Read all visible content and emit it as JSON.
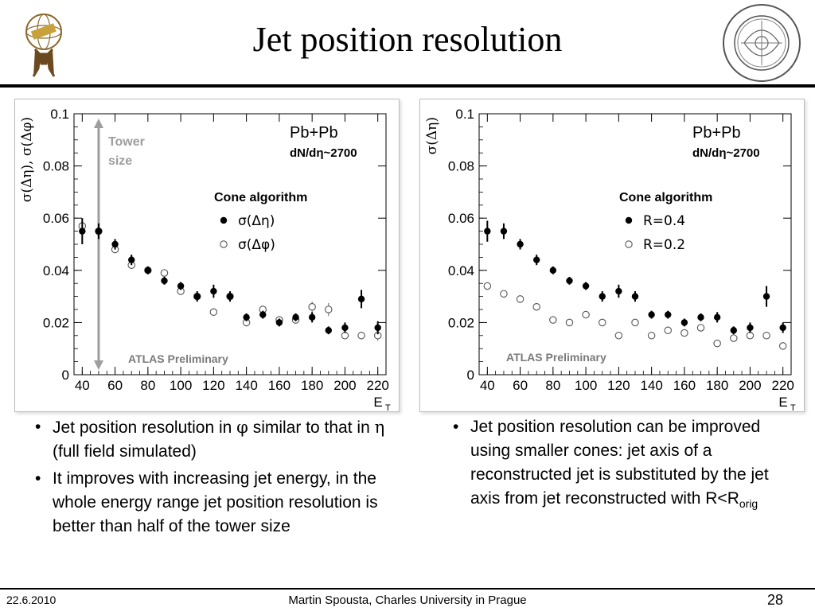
{
  "slide": {
    "title": "Jet position resolution",
    "footer": {
      "date": "22.6.2010",
      "author": "Martin Spousta,  Charles University in Prague",
      "page": "28"
    }
  },
  "bullets_left": [
    {
      "parts": [
        "Jet position resolution in ",
        "φ",
        " similar to that in ",
        "η",
        " (full field simulated)"
      ]
    },
    {
      "parts": [
        "It improves with increasing jet energy, in the whole energy range jet position resolution is better than half of the tower size"
      ]
    }
  ],
  "bullets_right": [
    {
      "text": "Jet position resolution can be improved using smaller cones: jet axis of a reconstructed jet is substituted by the jet axis from jet reconstructed with R<R",
      "sub": "orig"
    }
  ],
  "chart_data": [
    {
      "type": "scatter",
      "ylabel": "σ(Δη), σ(Δφ)",
      "xlabel": "E",
      "xlabel_sub": "T",
      "xlim": [
        35,
        225
      ],
      "ylim": [
        0,
        0.1
      ],
      "x_ticks": [
        40,
        60,
        80,
        100,
        120,
        140,
        160,
        180,
        200,
        220
      ],
      "y_ticks": [
        0,
        0.02,
        0.04,
        0.06,
        0.08,
        0.1
      ],
      "y_tick_labels": [
        "0",
        "0.02",
        "0.04",
        "0.06",
        "0.08",
        "0.1"
      ],
      "texts": {
        "system": "Pb+Pb",
        "multiplicity": "dN/dη~2700",
        "algorithm": "Cone algorithm",
        "preliminary": "ATLAS Preliminary",
        "tower_size": [
          "Tower",
          "size"
        ]
      },
      "tower_arrow": {
        "x": 50,
        "y_from": 0.0,
        "y_to": 0.1,
        "color": "#9e9e9e"
      },
      "series": [
        {
          "name": "σ(Δη)",
          "marker": "filled",
          "x": [
            40,
            50,
            60,
            70,
            80,
            90,
            100,
            110,
            120,
            130,
            140,
            150,
            160,
            170,
            180,
            190,
            200,
            210,
            220
          ],
          "y": [
            0.055,
            0.055,
            0.05,
            0.044,
            0.04,
            0.036,
            0.034,
            0.03,
            0.032,
            0.03,
            0.022,
            0.023,
            0.02,
            0.022,
            0.022,
            0.017,
            0.018,
            0.029,
            0.018
          ],
          "err": [
            0.005,
            0.003,
            0.002,
            0.002,
            0.0015,
            0.0015,
            0.0015,
            0.002,
            0.0025,
            0.002,
            0.0015,
            0.0015,
            0.0015,
            0.0015,
            0.002,
            0.0015,
            0.002,
            0.0035,
            0.0025
          ]
        },
        {
          "name": "σ(Δφ)",
          "marker": "open",
          "x": [
            40,
            50,
            60,
            70,
            80,
            90,
            100,
            110,
            120,
            130,
            140,
            150,
            160,
            170,
            180,
            190,
            200,
            210,
            220
          ],
          "y": [
            0.057,
            0.055,
            0.048,
            0.042,
            0.04,
            0.039,
            0.032,
            0.03,
            0.024,
            0.03,
            0.02,
            0.025,
            0.021,
            0.021,
            0.026,
            0.025,
            0.015,
            0.015,
            0.015
          ],
          "err": [
            0.003,
            0.002,
            0.0015,
            0.0015,
            0.0015,
            0.0015,
            0.0015,
            0.0015,
            0.0015,
            0.0015,
            0.0015,
            0.0015,
            0.0015,
            0.0015,
            0.002,
            0.0025,
            0.0015,
            0.0015,
            0.002
          ]
        }
      ]
    },
    {
      "type": "scatter",
      "ylabel": "σ(Δη)",
      "xlabel": "E",
      "xlabel_sub": "T",
      "xlim": [
        35,
        225
      ],
      "ylim": [
        0,
        0.1
      ],
      "x_ticks": [
        40,
        60,
        80,
        100,
        120,
        140,
        160,
        180,
        200,
        220
      ],
      "y_ticks": [
        0,
        0.02,
        0.04,
        0.06,
        0.08,
        0.1
      ],
      "y_tick_labels": [
        "0",
        "0.02",
        "0.04",
        "0.06",
        "0.08",
        "0.1"
      ],
      "texts": {
        "system": "Pb+Pb",
        "multiplicity": "dN/dη~2700",
        "algorithm": "Cone algorithm",
        "preliminary": "ATLAS Preliminary"
      },
      "series": [
        {
          "name": "R=0.4",
          "marker": "filled",
          "x": [
            40,
            50,
            60,
            70,
            80,
            90,
            100,
            110,
            120,
            130,
            140,
            150,
            160,
            170,
            180,
            190,
            200,
            210,
            220
          ],
          "y": [
            0.055,
            0.055,
            0.05,
            0.044,
            0.04,
            0.036,
            0.034,
            0.03,
            0.032,
            0.03,
            0.023,
            0.023,
            0.02,
            0.022,
            0.022,
            0.017,
            0.018,
            0.03,
            0.018
          ],
          "err": [
            0.004,
            0.003,
            0.002,
            0.002,
            0.0015,
            0.0015,
            0.0015,
            0.002,
            0.0025,
            0.002,
            0.0015,
            0.0015,
            0.0015,
            0.0015,
            0.002,
            0.0015,
            0.002,
            0.004,
            0.002
          ]
        },
        {
          "name": "R=0.2",
          "marker": "open",
          "x": [
            40,
            50,
            60,
            70,
            80,
            90,
            100,
            110,
            120,
            130,
            140,
            150,
            160,
            170,
            180,
            190,
            200,
            210,
            220
          ],
          "y": [
            0.034,
            0.031,
            0.029,
            0.026,
            0.021,
            0.02,
            0.023,
            0.02,
            0.015,
            0.02,
            0.015,
            0.017,
            0.016,
            0.018,
            0.012,
            0.014,
            0.015,
            0.015,
            0.011
          ],
          "err": [
            0.001,
            0.001,
            0.001,
            0.001,
            0.001,
            0.001,
            0.001,
            0.001,
            0.001,
            0.001,
            0.001,
            0.001,
            0.001,
            0.001,
            0.001,
            0.001,
            0.001,
            0.001,
            0.001
          ]
        }
      ]
    }
  ]
}
